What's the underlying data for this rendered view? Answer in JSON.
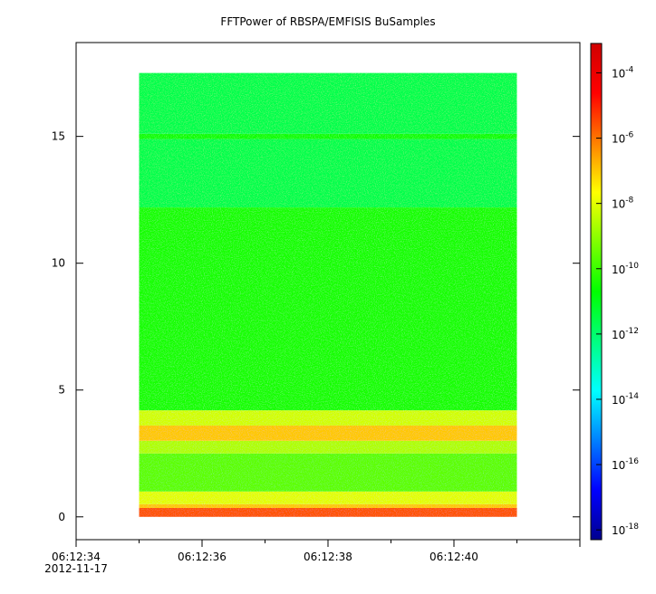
{
  "chart_data": {
    "type": "heatmap",
    "title": "FFTPower of RBSPA/EMFISIS  BuSamples",
    "xlabel": "",
    "ylabel": "",
    "x_ticks": [
      {
        "time": "06:12:34",
        "extra": "2012-11-17"
      },
      {
        "time": "06:12:36",
        "extra": ""
      },
      {
        "time": "06:12:38",
        "extra": ""
      },
      {
        "time": "06:12:40",
        "extra": ""
      }
    ],
    "x_range_seconds": [
      "06:12:34",
      "06:12:42"
    ],
    "data_time_range": [
      "06:12:35",
      "06:12:41"
    ],
    "y_ticks": [
      0,
      5,
      10,
      15
    ],
    "ylim": [
      -0.9,
      18.7
    ],
    "data_y_range": [
      0,
      17.5
    ],
    "colorbar": {
      "scale": "log",
      "labels": [
        {
          "base": "10",
          "exp": "-4"
        },
        {
          "base": "10",
          "exp": "-6"
        },
        {
          "base": "10",
          "exp": "-8"
        },
        {
          "base": "10",
          "exp": "-10"
        },
        {
          "base": "10",
          "exp": "-12"
        },
        {
          "base": "10",
          "exp": "-14"
        },
        {
          "base": "10",
          "exp": "-16"
        },
        {
          "base": "10",
          "exp": "-18"
        }
      ],
      "range_log10": [
        -18.3,
        -3.1
      ],
      "colormap": [
        "#00008f",
        "#0000ff",
        "#0080ff",
        "#00ffff",
        "#00ff80",
        "#00ff00",
        "#80ff00",
        "#ffff00",
        "#ff8000",
        "#ff0000",
        "#d00000"
      ]
    },
    "bands": [
      {
        "y_from": 0.0,
        "y_to": 0.35,
        "log_power": -5.6
      },
      {
        "y_from": 0.35,
        "y_to": 0.5,
        "log_power": -7.0
      },
      {
        "y_from": 0.5,
        "y_to": 1.0,
        "log_power": -8.0
      },
      {
        "y_from": 1.0,
        "y_to": 2.5,
        "log_power": -9.6
      },
      {
        "y_from": 2.5,
        "y_to": 3.0,
        "log_power": -8.6
      },
      {
        "y_from": 3.0,
        "y_to": 3.6,
        "log_power": -7.0
      },
      {
        "y_from": 3.6,
        "y_to": 4.2,
        "log_power": -8.2
      },
      {
        "y_from": 4.2,
        "y_to": 12.2,
        "log_power": -10.4
      },
      {
        "y_from": 12.2,
        "y_to": 14.9,
        "log_power": -11.6
      },
      {
        "y_from": 14.9,
        "y_to": 15.1,
        "log_power": -10.6
      },
      {
        "y_from": 15.1,
        "y_to": 17.5,
        "log_power": -11.6
      }
    ]
  }
}
